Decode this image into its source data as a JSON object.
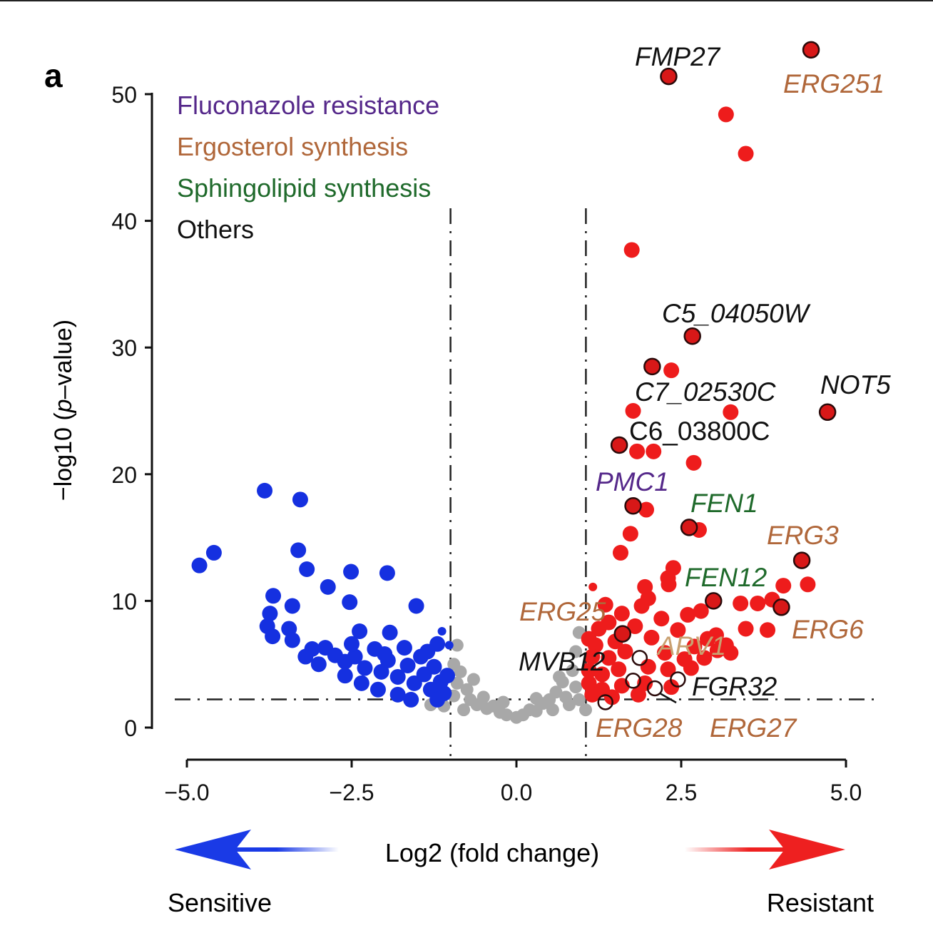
{
  "chart_data": {
    "type": "scatter",
    "panel_label": "a",
    "xlabel": "Log2 (fold change)",
    "ylabel_parts": [
      "−log10 (",
      "p",
      "–value)"
    ],
    "xlim": [
      -5.3,
      5.3
    ],
    "ylim": [
      0,
      50
    ],
    "xticks": [
      -5.0,
      -2.5,
      0.0,
      2.5,
      5.0
    ],
    "xtick_labels": [
      "−5.0",
      "−2.5",
      "0.0",
      "2.5",
      "5.0"
    ],
    "yticks": [
      0,
      10,
      20,
      30,
      40,
      50
    ],
    "ytick_labels": [
      "0",
      "10",
      "20",
      "30",
      "40",
      "50"
    ],
    "thresholds": {
      "log2fc": [
        -1,
        1
      ],
      "neg_log10_p": 2
    },
    "grid": false,
    "legend_position": "top-left",
    "legend": [
      {
        "label": "Fluconazole resistance",
        "color": "#55288a"
      },
      {
        "label": "Ergosterol synthesis",
        "color": "#b0673a"
      },
      {
        "label": "Sphingolipid synthesis",
        "color": "#1f6a2b"
      },
      {
        "label": "Others",
        "color": "#111111"
      }
    ],
    "direction_labels": {
      "left": "Sensitive",
      "right": "Resistant"
    },
    "colors": {
      "sensitive": "#1530e0",
      "resistant": "#ee1c1c",
      "ns": "#a8a8a8",
      "sensitive_arrow": "#1a3ae6",
      "resistant_arrow": "#ee2020"
    },
    "labeled_genes": [
      {
        "gene": "ERG251",
        "x": 4.47,
        "y": 53.5,
        "category": "Ergosterol synthesis"
      },
      {
        "gene": "FMP27",
        "x": 2.31,
        "y": 51.4,
        "category": "Others"
      },
      {
        "gene": "C5_04050W",
        "x": 2.67,
        "y": 30.9,
        "category": "Others"
      },
      {
        "gene": "C7_02530C",
        "x": 2.06,
        "y": 28.5,
        "category": "Others"
      },
      {
        "gene": "NOT5",
        "x": 4.72,
        "y": 24.9,
        "category": "Others"
      },
      {
        "gene": "C6_03800C",
        "x": 1.56,
        "y": 22.3,
        "category": "Others"
      },
      {
        "gene": "PMC1",
        "x": 1.77,
        "y": 17.5,
        "category": "Fluconazole resistance"
      },
      {
        "gene": "FEN1",
        "x": 2.62,
        "y": 15.8,
        "category": "Sphingolipid synthesis"
      },
      {
        "gene": "ERG3",
        "x": 4.33,
        "y": 13.2,
        "category": "Ergosterol synthesis"
      },
      {
        "gene": "FEN12",
        "x": 2.99,
        "y": 10.0,
        "category": "Sphingolipid synthesis"
      },
      {
        "gene": "ERG6",
        "x": 4.02,
        "y": 9.5,
        "category": "Ergosterol synthesis"
      },
      {
        "gene": "ERG25",
        "x": 1.61,
        "y": 7.4,
        "category": "Ergosterol synthesis"
      },
      {
        "gene": "MVB12",
        "x": 1.87,
        "y": 5.5,
        "category": "Others"
      },
      {
        "gene": "ARV1",
        "x": 1.77,
        "y": 3.7,
        "category": "Ergosterol synthesis"
      },
      {
        "gene": "FGR32",
        "x": 2.45,
        "y": 3.8,
        "category": "Others"
      },
      {
        "gene": "ERG27",
        "x": 2.1,
        "y": 3.1,
        "category": "Ergosterol synthesis"
      },
      {
        "gene": "ERG28",
        "x": 1.35,
        "y": 2.0,
        "category": "Ergosterol synthesis"
      }
    ],
    "resistant_points": [
      [
        3.18,
        48.4
      ],
      [
        3.48,
        45.3
      ],
      [
        1.75,
        37.7
      ],
      [
        2.35,
        28.2
      ],
      [
        3.25,
        24.9
      ],
      [
        1.77,
        25.0
      ],
      [
        1.83,
        21.8
      ],
      [
        2.08,
        21.8
      ],
      [
        2.69,
        20.9
      ],
      [
        1.97,
        17.2
      ],
      [
        2.77,
        15.6
      ],
      [
        1.73,
        15.3
      ],
      [
        1.58,
        13.8
      ],
      [
        2.38,
        12.6
      ],
      [
        4.42,
        11.3
      ],
      [
        4.05,
        11.2
      ],
      [
        2.31,
        11.3
      ],
      [
        1.95,
        11.1
      ],
      [
        3.88,
        10.1
      ],
      [
        3.4,
        9.8
      ],
      [
        3.66,
        9.8
      ],
      [
        3.81,
        7.7
      ],
      [
        3.48,
        7.8
      ],
      [
        3.03,
        7.3
      ],
      [
        3.18,
        6.5
      ],
      [
        1.16,
        11.1
      ],
      [
        2.3,
        11.8
      ],
      [
        1.9,
        9.6
      ],
      [
        1.6,
        9.0
      ],
      [
        2.6,
        8.9
      ],
      [
        2.2,
        8.6
      ],
      [
        1.4,
        8.3
      ],
      [
        1.25,
        7.8
      ],
      [
        1.8,
        8.0
      ],
      [
        2.45,
        7.7
      ],
      [
        2.9,
        7.0
      ],
      [
        1.2,
        6.5
      ],
      [
        1.5,
        6.8
      ],
      [
        2.05,
        7.1
      ],
      [
        2.7,
        6.4
      ],
      [
        3.25,
        5.9
      ],
      [
        3.05,
        6.1
      ],
      [
        1.15,
        5.6
      ],
      [
        1.4,
        5.5
      ],
      [
        1.65,
        6.0
      ],
      [
        2.25,
        5.9
      ],
      [
        2.55,
        5.4
      ],
      [
        2.85,
        5.5
      ],
      [
        1.1,
        4.5
      ],
      [
        1.3,
        4.2
      ],
      [
        1.55,
        4.6
      ],
      [
        2.0,
        4.8
      ],
      [
        2.3,
        4.6
      ],
      [
        2.65,
        4.7
      ],
      [
        1.1,
        3.5
      ],
      [
        1.3,
        3.0
      ],
      [
        1.6,
        3.3
      ],
      [
        1.95,
        3.5
      ],
      [
        2.35,
        3.2
      ],
      [
        1.15,
        2.6
      ],
      [
        1.45,
        2.4
      ],
      [
        1.85,
        2.6
      ],
      [
        1.1,
        7.0
      ],
      [
        1.35,
        9.7
      ],
      [
        2.0,
        10.2
      ],
      [
        2.8,
        9.2
      ]
    ],
    "sensitive_points": [
      [
        -3.82,
        18.7
      ],
      [
        -3.28,
        18.0
      ],
      [
        -4.59,
        13.8
      ],
      [
        -4.81,
        12.8
      ],
      [
        -3.31,
        14.0
      ],
      [
        -3.18,
        12.5
      ],
      [
        -2.51,
        12.3
      ],
      [
        -1.96,
        12.2
      ],
      [
        -2.86,
        11.1
      ],
      [
        -2.53,
        9.9
      ],
      [
        -1.52,
        9.6
      ],
      [
        -3.69,
        10.4
      ],
      [
        -3.4,
        9.6
      ],
      [
        -3.74,
        9.0
      ],
      [
        -2.38,
        7.6
      ],
      [
        -1.92,
        7.5
      ],
      [
        -3.78,
        8.0
      ],
      [
        -3.7,
        7.2
      ],
      [
        -3.45,
        7.8
      ],
      [
        -3.4,
        6.9
      ],
      [
        -3.1,
        6.2
      ],
      [
        -2.9,
        6.3
      ],
      [
        -2.75,
        5.7
      ],
      [
        -2.6,
        5.2
      ],
      [
        -2.45,
        5.6
      ],
      [
        -2.3,
        4.7
      ],
      [
        -2.15,
        6.2
      ],
      [
        -2.05,
        4.4
      ],
      [
        -1.95,
        5.3
      ],
      [
        -1.8,
        4.0
      ],
      [
        -1.7,
        6.3
      ],
      [
        -1.65,
        4.9
      ],
      [
        -1.55,
        3.5
      ],
      [
        -1.45,
        5.6
      ],
      [
        -1.4,
        4.2
      ],
      [
        -1.3,
        3.0
      ],
      [
        -1.25,
        4.8
      ],
      [
        -1.15,
        3.6
      ],
      [
        -1.1,
        2.7
      ],
      [
        -1.05,
        4.1
      ],
      [
        -1.8,
        2.6
      ],
      [
        -2.1,
        3.0
      ],
      [
        -1.6,
        2.2
      ],
      [
        -2.35,
        3.5
      ],
      [
        -2.6,
        4.1
      ],
      [
        -3.0,
        5.0
      ],
      [
        -3.2,
        5.6
      ],
      [
        -1.2,
        2.2
      ],
      [
        -2.0,
        5.8
      ],
      [
        -2.5,
        6.6
      ],
      [
        -1.35,
        6.0
      ],
      [
        -1.13,
        7.6
      ],
      [
        -1.02,
        6.5
      ],
      [
        -1.2,
        6.6
      ]
    ],
    "ns_points": [
      [
        -0.95,
        2.5
      ],
      [
        -0.9,
        3.5
      ],
      [
        -0.95,
        5.0
      ],
      [
        -0.9,
        6.5
      ],
      [
        -0.85,
        4.4
      ],
      [
        -0.75,
        3.0
      ],
      [
        -0.7,
        2.2
      ],
      [
        -0.6,
        1.8
      ],
      [
        -0.5,
        2.4
      ],
      [
        -0.45,
        1.5
      ],
      [
        -0.35,
        1.7
      ],
      [
        -0.25,
        1.2
      ],
      [
        -0.15,
        1.0
      ],
      [
        0.0,
        0.8
      ],
      [
        0.1,
        1.0
      ],
      [
        0.2,
        1.4
      ],
      [
        0.3,
        1.3
      ],
      [
        0.4,
        1.9
      ],
      [
        0.5,
        2.2
      ],
      [
        0.6,
        2.8
      ],
      [
        0.7,
        3.6
      ],
      [
        0.75,
        2.4
      ],
      [
        0.85,
        4.5
      ],
      [
        0.9,
        6.0
      ],
      [
        0.95,
        7.5
      ],
      [
        0.9,
        3.2
      ],
      [
        0.8,
        1.8
      ],
      [
        0.55,
        1.4
      ],
      [
        -0.8,
        1.4
      ],
      [
        -1.1,
        1.7
      ],
      [
        -1.3,
        1.8
      ],
      [
        1.05,
        1.4
      ],
      [
        0.95,
        2.2
      ],
      [
        -0.65,
        3.8
      ],
      [
        0.65,
        4.0
      ],
      [
        -0.2,
        2.0
      ],
      [
        0.3,
        2.3
      ]
    ]
  }
}
